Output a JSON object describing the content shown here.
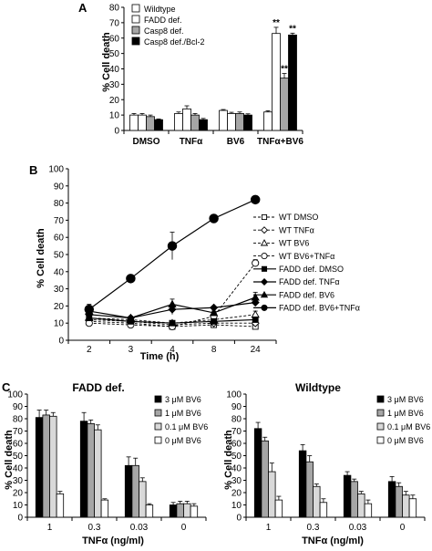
{
  "figure": {
    "panels": [
      {
        "letter": "A",
        "chart_data": {
          "type": "bar",
          "ylabel": "% Cell death",
          "ylim": [
            0,
            80
          ],
          "yticks": [
            0,
            10,
            20,
            30,
            40,
            50,
            60,
            70,
            80
          ],
          "categories": [
            "DMSO",
            "TNFα",
            "BV6",
            "TNFα+BV6"
          ],
          "series": [
            {
              "name": "Wildtype",
              "color": "#ffffff",
              "values": [
                10,
                11,
                13,
                12
              ],
              "errors": [
                1,
                1,
                0.6,
                0.8
              ]
            },
            {
              "name": "FADD def.",
              "color": "#ffffff",
              "values": [
                10,
                14,
                11,
                63
              ],
              "errors": [
                1,
                2,
                0.8,
                4
              ]
            },
            {
              "name": "Casp8 def.",
              "color": "#a6a6a6",
              "values": [
                9,
                10,
                11,
                34
              ],
              "errors": [
                1,
                1,
                1,
                3
              ]
            },
            {
              "name": "Casp8 def./Bcl-2",
              "color": "#000000",
              "values": [
                7,
                7,
                10,
                62
              ],
              "errors": [
                0.5,
                0.8,
                0.8,
                1.2
              ]
            }
          ],
          "annotations": [
            {
              "text": "**",
              "category": "TNFα+BV6",
              "series": "FADD def."
            },
            {
              "text": "**",
              "category": "TNFα+BV6",
              "series": "Casp8 def."
            },
            {
              "text": "**",
              "category": "TNFα+BV6",
              "series": "Casp8 def./Bcl-2"
            }
          ],
          "legend": "top-left"
        }
      },
      {
        "letter": "B",
        "chart_data": {
          "type": "line",
          "xlabel": "Time (h)",
          "ylabel": "% Cell death",
          "ylim": [
            0,
            100
          ],
          "yticks": [
            0,
            10,
            20,
            30,
            40,
            50,
            60,
            70,
            80,
            90,
            100
          ],
          "categories": [
            "2",
            "3",
            "4",
            "8",
            "24"
          ],
          "series": [
            {
              "name": "WT DMSO",
              "dashed": true,
              "marker": "square",
              "filled": false,
              "values": [
                11,
                10,
                8,
                9,
                8
              ],
              "errors": [
                1,
                1,
                0.5,
                1,
                1
              ]
            },
            {
              "name": "WT TNFα",
              "dashed": true,
              "marker": "diamond",
              "filled": false,
              "values": [
                12,
                11,
                9,
                10,
                10
              ],
              "errors": [
                1,
                1,
                1,
                1,
                1
              ]
            },
            {
              "name": "WT BV6",
              "dashed": true,
              "marker": "triangle",
              "filled": false,
              "values": [
                13,
                12,
                10,
                12,
                15
              ],
              "errors": [
                1,
                1,
                1,
                1,
                2
              ]
            },
            {
              "name": "WT BV6+TNFα",
              "dashed": true,
              "marker": "circle",
              "filled": false,
              "values": [
                10,
                9,
                8,
                14,
                45
              ],
              "errors": [
                1,
                1,
                1,
                2,
                2
              ]
            },
            {
              "name": "FADD def. DMSO",
              "dashed": false,
              "marker": "square",
              "filled": true,
              "values": [
                13,
                11,
                10,
                11,
                12
              ],
              "errors": [
                1,
                1,
                1,
                1,
                1
              ]
            },
            {
              "name": "FADD def. TNFα",
              "dashed": false,
              "marker": "diamond",
              "filled": true,
              "values": [
                15,
                13,
                18,
                19,
                22
              ],
              "errors": [
                2,
                1,
                3,
                1,
                2
              ]
            },
            {
              "name": "FADD def. BV6",
              "dashed": false,
              "marker": "triangle",
              "filled": true,
              "values": [
                17,
                13,
                21,
                16,
                25
              ],
              "errors": [
                2,
                1,
                3,
                1,
                3
              ]
            },
            {
              "name": "FADD def. BV6+TNFα",
              "dashed": false,
              "marker": "circle",
              "filled": true,
              "values": [
                18,
                36,
                55,
                71,
                82
              ],
              "errors": [
                3,
                2,
                8,
                1.5,
                1.5
              ]
            }
          ],
          "legend": "right"
        }
      },
      {
        "letter": "C",
        "chart_data": [
          {
            "type": "bar",
            "title": "FADD def.",
            "xlabel": "TNFα (ng/ml)",
            "ylabel": "% Cell death",
            "ylim": [
              0,
              100
            ],
            "yticks": [
              0,
              10,
              20,
              30,
              40,
              50,
              60,
              70,
              80,
              90,
              100
            ],
            "categories": [
              "1",
              "0.3",
              "0.03",
              "0"
            ],
            "series": [
              {
                "name": "3 μM BV6",
                "color": "#000000",
                "values": [
                  81,
                  78,
                  42,
                  10
                ],
                "errors": [
                  6,
                  7,
                  7,
                  2
                ]
              },
              {
                "name": "1 μM BV6",
                "color": "#a6a6a6",
                "values": [
                  83,
                  76,
                  42,
                  11
                ],
                "errors": [
                  4,
                  3,
                  6,
                  2
                ]
              },
              {
                "name": "0.1 μM BV6",
                "color": "#d9d9d9",
                "values": [
                  82,
                  71,
                  29,
                  11
                ],
                "errors": [
                  3,
                  4,
                  3,
                  2
                ]
              },
              {
                "name": "0 μM BV6",
                "color": "#ffffff",
                "values": [
                  19,
                  14,
                  10,
                  9
                ],
                "errors": [
                  2,
                  1,
                  1,
                  2
                ]
              }
            ],
            "legend": "top-right"
          },
          {
            "type": "bar",
            "title": "Wildtype",
            "xlabel": "TNFα (ng/ml)",
            "ylabel": "% Cell death",
            "ylim": [
              0,
              100
            ],
            "yticks": [
              0,
              10,
              20,
              30,
              40,
              50,
              60,
              70,
              80,
              90,
              100
            ],
            "categories": [
              "1",
              "0.3",
              "0.03",
              "0"
            ],
            "series": [
              {
                "name": "3 μM BV6",
                "color": "#000000",
                "values": [
                  72,
                  54,
                  34,
                  29
                ],
                "errors": [
                  5,
                  5,
                  3,
                  4
                ]
              },
              {
                "name": "1 μM BV6",
                "color": "#a6a6a6",
                "values": [
                  62,
                  45,
                  29,
                  25
                ],
                "errors": [
                  3,
                  5,
                  2,
                  3
                ]
              },
              {
                "name": "0.1 μM BV6",
                "color": "#d9d9d9",
                "values": [
                  37,
                  25,
                  19,
                  18
                ],
                "errors": [
                  7,
                  2,
                  2,
                  3
                ]
              },
              {
                "name": "0 μM BV6",
                "color": "#ffffff",
                "values": [
                  14,
                  12,
                  11,
                  15
                ],
                "errors": [
                  3,
                  3,
                  3,
                  3
                ]
              }
            ],
            "legend": "top-right"
          }
        ]
      }
    ]
  }
}
